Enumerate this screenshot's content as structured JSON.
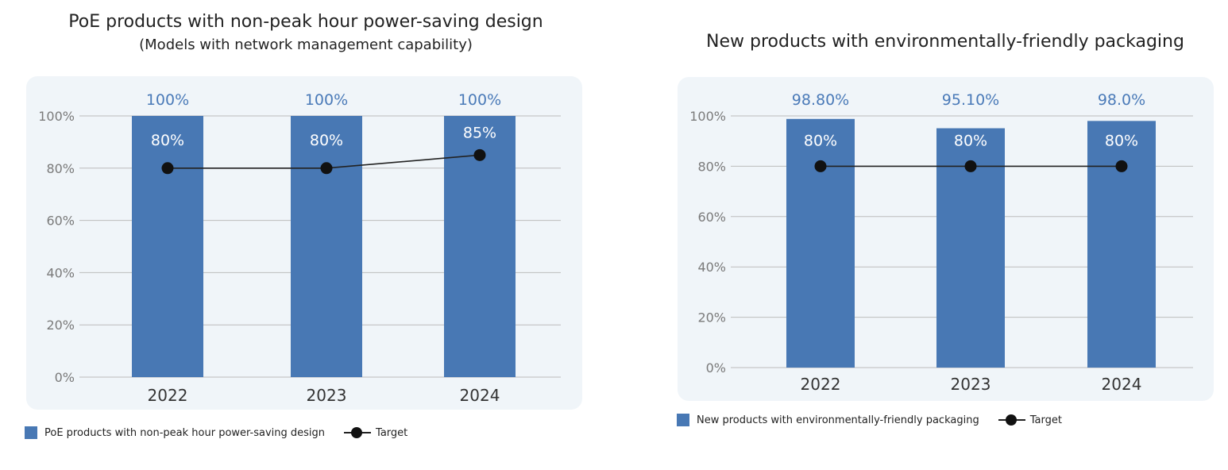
{
  "chart_data": [
    {
      "type": "bar",
      "title": "PoE products with non-peak hour power-saving design",
      "subtitle": "(Models with network management capability)",
      "categories": [
        "2022",
        "2023",
        "2024"
      ],
      "series": [
        {
          "name": "PoE products with non-peak hour power-saving design",
          "kind": "bar",
          "values": [
            100,
            100,
            100
          ],
          "labels": [
            "100%",
            "100%",
            "100%"
          ]
        },
        {
          "name": "Target",
          "kind": "line",
          "values": [
            80,
            80,
            85
          ],
          "labels": [
            "80%",
            "80%",
            "85%"
          ]
        }
      ],
      "yticks": [
        "0%",
        "20%",
        "40%",
        "60%",
        "80%",
        "100%"
      ],
      "ylim": [
        0,
        100
      ],
      "legend": {
        "bar_label": "PoE products with non-peak hour power-saving design",
        "line_label": "Target",
        "position": "bottom-left"
      },
      "colors": {
        "bar": "#4878b4",
        "bar_label": "#4a7ab8",
        "line": "#222222",
        "panel": "#f0f5f9",
        "grid": "#bcbcbc"
      }
    },
    {
      "type": "bar",
      "title": "New products with environmentally-friendly packaging",
      "categories": [
        "2022",
        "2023",
        "2024"
      ],
      "series": [
        {
          "name": "New products with environmentally-friendly packaging",
          "kind": "bar",
          "values": [
            98.8,
            95.1,
            98.0
          ],
          "labels": [
            "98.80%",
            "95.10%",
            "98.0%"
          ]
        },
        {
          "name": "Target",
          "kind": "line",
          "values": [
            80,
            80,
            80
          ],
          "labels": [
            "80%",
            "80%",
            "80%"
          ]
        }
      ],
      "yticks": [
        "0%",
        "20%",
        "40%",
        "60%",
        "80%",
        "100%"
      ],
      "ylim": [
        0,
        100
      ],
      "legend": {
        "bar_label": "New products with environmentally-friendly packaging",
        "line_label": "Target",
        "position": "bottom-left"
      },
      "colors": {
        "bar": "#4878b4",
        "bar_label": "#4a7ab8",
        "line": "#222222",
        "panel": "#f0f5f9",
        "grid": "#bcbcbc"
      }
    }
  ]
}
